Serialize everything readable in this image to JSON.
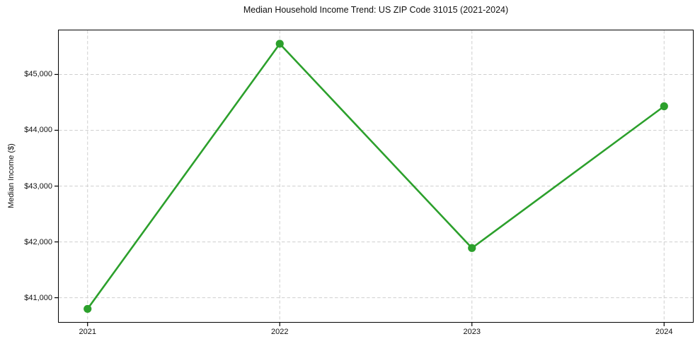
{
  "chart_data": {
    "type": "line",
    "title": "Median Household Income Trend: US ZIP Code 31015 (2021-2024)",
    "xlabel": "",
    "ylabel": "Median Income ($)",
    "x": [
      2021,
      2022,
      2023,
      2024
    ],
    "values": [
      40800,
      45550,
      41890,
      44430
    ],
    "xticks": [
      2021,
      2022,
      2023,
      2024
    ],
    "xtick_labels": [
      "2021",
      "2022",
      "2023",
      "2024"
    ],
    "yticks": [
      41000,
      42000,
      43000,
      44000,
      45000
    ],
    "ytick_labels": [
      "$41,000",
      "$42,000",
      "$43,000",
      "$44,000",
      "$45,000"
    ],
    "xlim": [
      2020.85,
      2024.15
    ],
    "ylim": [
      40565,
      45790
    ],
    "grid": true,
    "legend_position": "none",
    "line_color": "#2ca02c",
    "marker": "circle",
    "grid_color": "#cfcfcf",
    "axis_color": "#000000",
    "text_color": "#111111",
    "background_color": "#ffffff"
  }
}
